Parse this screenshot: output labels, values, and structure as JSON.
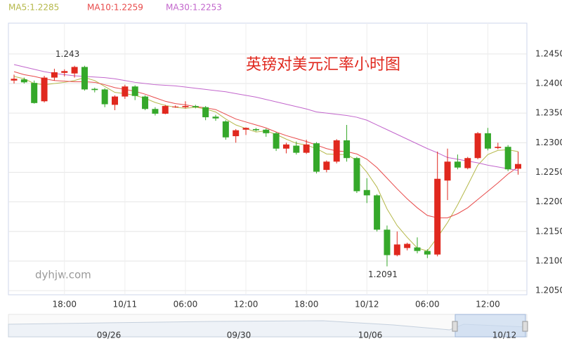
{
  "chart_data": {
    "type": "candlestick",
    "title": "英镑对美元汇率小时图",
    "watermark": "dyhjw.com",
    "categories": [
      null,
      null,
      null,
      null,
      null,
      "18:00",
      null,
      null,
      null,
      null,
      null,
      "10/11",
      null,
      null,
      null,
      null,
      null,
      "06:00",
      null,
      null,
      null,
      null,
      null,
      "12:00",
      null,
      null,
      null,
      null,
      null,
      "18:00",
      null,
      null,
      null,
      null,
      null,
      "10/12",
      null,
      null,
      null,
      null,
      null,
      "06:00",
      null,
      null,
      null,
      null,
      null,
      "12:00",
      null,
      null,
      null
    ],
    "open": [
      1.2405,
      1.2407,
      1.2401,
      1.237,
      1.241,
      1.2418,
      1.2417,
      1.2428,
      1.2391,
      1.239,
      1.2364,
      1.2378,
      1.2395,
      1.2378,
      1.2357,
      1.2349,
      1.2361,
      1.236,
      1.2362,
      1.236,
      1.2344,
      1.2336,
      1.2311,
      1.2322,
      1.2323,
      1.2322,
      1.2316,
      1.229,
      1.2295,
      1.2283,
      1.2299,
      1.2254,
      1.2268,
      1.2304,
      1.2274,
      1.222,
      1.2211,
      1.2153,
      1.211,
      1.2122,
      1.2123,
      1.2117,
      1.2111,
      1.2236,
      1.2268,
      1.2257,
      1.2274,
      1.2316,
      1.2291,
      1.2293,
      1.2256
    ],
    "high": [
      1.2415,
      1.241,
      1.2405,
      1.2413,
      1.2425,
      1.2424,
      1.243,
      1.243,
      1.2393,
      1.2392,
      1.238,
      1.2398,
      1.2397,
      1.238,
      1.236,
      1.2364,
      1.2363,
      1.237,
      1.2364,
      1.2362,
      1.2347,
      1.2338,
      1.2323,
      1.2326,
      1.2325,
      1.2324,
      1.2318,
      1.23,
      1.2302,
      1.2305,
      1.2301,
      1.227,
      1.2306,
      1.233,
      1.2276,
      1.224,
      1.2213,
      1.216,
      1.215,
      1.2131,
      1.214,
      1.212,
      1.2285,
      1.229,
      1.228,
      1.2276,
      1.2318,
      1.2325,
      1.23,
      1.2296,
      1.2285
    ],
    "low": [
      1.24,
      1.24,
      1.2366,
      1.2368,
      1.2405,
      1.2412,
      1.241,
      1.2388,
      1.2385,
      1.236,
      1.2355,
      1.2374,
      1.2372,
      1.2355,
      1.2346,
      1.2348,
      1.2359,
      1.2358,
      1.2358,
      1.2338,
      1.2337,
      1.2305,
      1.23,
      1.2313,
      1.2319,
      1.231,
      1.2286,
      1.2282,
      1.228,
      1.2281,
      1.2248,
      1.225,
      1.2265,
      1.2268,
      1.2215,
      1.2198,
      1.215,
      1.2091,
      1.2108,
      1.2118,
      1.2113,
      1.2105,
      1.2108,
      1.2203,
      1.2255,
      1.2255,
      1.2272,
      1.2287,
      1.2289,
      1.2252,
      1.2246
    ],
    "close": [
      1.2408,
      1.2402,
      1.2367,
      1.241,
      1.2419,
      1.2421,
      1.2428,
      1.239,
      1.2389,
      1.2365,
      1.2378,
      1.2395,
      1.2379,
      1.2357,
      1.2349,
      1.2362,
      1.2361,
      1.2362,
      1.236,
      1.2343,
      1.2341,
      1.2309,
      1.2321,
      1.2325,
      1.2321,
      1.2316,
      1.229,
      1.2297,
      1.2283,
      1.2297,
      1.2251,
      1.2268,
      1.2304,
      1.2274,
      1.2218,
      1.2211,
      1.2153,
      1.211,
      1.2128,
      1.2129,
      1.2117,
      1.2111,
      1.2239,
      1.2268,
      1.2258,
      1.2274,
      1.2316,
      1.229,
      1.2293,
      1.2255,
      1.2264
    ],
    "up_color": "#e0281e",
    "down_color": "#35a82a",
    "series": [
      {
        "name": "MA5:1.2285",
        "color": "#b5b84a",
        "values": [
          1.2412,
          1.2408,
          1.24,
          1.2398,
          1.24,
          1.2402,
          1.2405,
          1.241,
          1.2405,
          1.2395,
          1.2385,
          1.2383,
          1.238,
          1.2375,
          1.2368,
          1.2363,
          1.236,
          1.2358,
          1.236,
          1.2357,
          1.2352,
          1.234,
          1.233,
          1.2324,
          1.2318,
          1.232,
          1.2314,
          1.2306,
          1.2299,
          1.2296,
          1.229,
          1.2281,
          1.228,
          1.228,
          1.227,
          1.225,
          1.2225,
          1.2188,
          1.216,
          1.214,
          1.2122,
          1.2117,
          1.214,
          1.2165,
          1.2195,
          1.2228,
          1.2262,
          1.228,
          1.2287,
          1.2288,
          1.2285
        ]
      },
      {
        "name": "MA10:1.2259",
        "color": "#e84a4a",
        "values": [
          1.242,
          1.2415,
          1.2412,
          1.2408,
          1.2405,
          1.2404,
          1.2403,
          1.2403,
          1.2402,
          1.2398,
          1.2393,
          1.239,
          1.2387,
          1.2382,
          1.2376,
          1.237,
          1.2366,
          1.2364,
          1.2361,
          1.2359,
          1.2356,
          1.2348,
          1.234,
          1.2335,
          1.233,
          1.2325,
          1.2318,
          1.2312,
          1.2307,
          1.2302,
          1.2296,
          1.229,
          1.2286,
          1.2285,
          1.2281,
          1.2272,
          1.2258,
          1.224,
          1.2222,
          1.2205,
          1.219,
          1.2177,
          1.2173,
          1.2173,
          1.218,
          1.219,
          1.2204,
          1.2218,
          1.2232,
          1.2247,
          1.2259
        ]
      },
      {
        "name": "MA30:1.2253",
        "color": "#c266cc",
        "values": [
          1.2432,
          1.2428,
          1.2424,
          1.242,
          1.2417,
          1.2415,
          1.2413,
          1.2412,
          1.2411,
          1.241,
          1.2408,
          1.2405,
          1.2402,
          1.24,
          1.2398,
          1.2397,
          1.2396,
          1.2394,
          1.2392,
          1.239,
          1.2388,
          1.2386,
          1.2383,
          1.238,
          1.2377,
          1.2373,
          1.2369,
          1.2365,
          1.2361,
          1.2357,
          1.2352,
          1.235,
          1.2348,
          1.2346,
          1.2343,
          1.2338,
          1.233,
          1.2322,
          1.2314,
          1.2306,
          1.2298,
          1.229,
          1.2283,
          1.2275,
          1.2272,
          1.2269,
          1.2266,
          1.2262,
          1.2259,
          1.2256,
          1.2253
        ]
      }
    ],
    "annotations": [
      {
        "value": 1.243,
        "at": 6
      },
      {
        "value": 1.2091,
        "at": 37
      }
    ],
    "ylim": [
      1.2043,
      1.2502
    ],
    "yticks": [
      {
        "value": 1.205,
        "label": "1.2050"
      },
      {
        "value": 1.21,
        "label": "1.2100"
      },
      {
        "value": 1.215,
        "label": "1.2150"
      },
      {
        "value": 1.22,
        "label": "1.2200"
      },
      {
        "value": 1.225,
        "label": "1.2250"
      },
      {
        "value": 1.23,
        "label": "1.2300"
      },
      {
        "value": 1.235,
        "label": "1.2350"
      },
      {
        "value": 1.24,
        "label": "1.2400"
      },
      {
        "value": 1.245,
        "label": "1.2450"
      }
    ],
    "grid": true,
    "navigator_labels": [
      "09/26",
      "09/30",
      "10/06",
      "10/12"
    ]
  }
}
